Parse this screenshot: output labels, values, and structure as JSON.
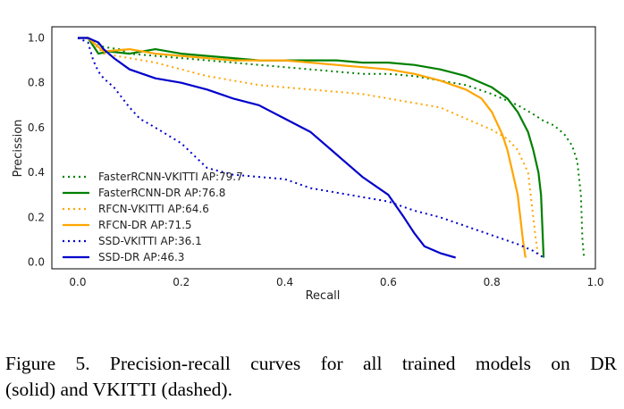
{
  "caption": {
    "line1": "Figure 5. Precision-recall curves for all trained models on DR",
    "line2": "(solid) and VKITTI (dashed)."
  },
  "chart_data": {
    "type": "line",
    "title": "",
    "xlabel": "Recall",
    "ylabel": "Precission",
    "xlim": [
      -0.05,
      1.0
    ],
    "ylim": [
      -0.03,
      1.05
    ],
    "xticks": [
      "0.0",
      "0.2",
      "0.4",
      "0.6",
      "0.8",
      "1.0"
    ],
    "yticks": [
      "0.0",
      "0.2",
      "0.4",
      "0.6",
      "0.8",
      "1.0"
    ],
    "grid": false,
    "legend_position": "lower-left",
    "series": [
      {
        "name": "FasterRCNN-VKITTI AP:79.7",
        "color": "#008000",
        "dash": "dotted",
        "x": [
          0.0,
          0.02,
          0.05,
          0.08,
          0.1,
          0.15,
          0.2,
          0.25,
          0.3,
          0.35,
          0.4,
          0.45,
          0.5,
          0.55,
          0.6,
          0.65,
          0.7,
          0.75,
          0.8,
          0.85,
          0.88,
          0.9,
          0.92,
          0.94,
          0.955,
          0.965,
          0.972,
          0.975,
          0.978
        ],
        "y": [
          1.0,
          1.0,
          0.96,
          0.95,
          0.93,
          0.92,
          0.91,
          0.9,
          0.89,
          0.88,
          0.87,
          0.86,
          0.85,
          0.84,
          0.84,
          0.83,
          0.81,
          0.79,
          0.75,
          0.7,
          0.66,
          0.63,
          0.61,
          0.57,
          0.52,
          0.45,
          0.3,
          0.1,
          0.02
        ]
      },
      {
        "name": "FasterRCNN-DR AP:76.8",
        "color": "#008000",
        "dash": "solid",
        "x": [
          0.0,
          0.02,
          0.04,
          0.06,
          0.1,
          0.15,
          0.2,
          0.25,
          0.3,
          0.35,
          0.4,
          0.45,
          0.5,
          0.55,
          0.6,
          0.65,
          0.7,
          0.75,
          0.8,
          0.83,
          0.85,
          0.87,
          0.88,
          0.89,
          0.895,
          0.9
        ],
        "y": [
          1.0,
          1.0,
          0.93,
          0.94,
          0.93,
          0.95,
          0.93,
          0.92,
          0.91,
          0.9,
          0.9,
          0.9,
          0.9,
          0.89,
          0.89,
          0.88,
          0.86,
          0.83,
          0.78,
          0.73,
          0.67,
          0.58,
          0.5,
          0.4,
          0.3,
          0.02
        ]
      },
      {
        "name": "RFCN-VKITTI AP:64.6",
        "color": "#FFA500",
        "dash": "dotted",
        "x": [
          0.0,
          0.02,
          0.05,
          0.1,
          0.15,
          0.2,
          0.25,
          0.3,
          0.35,
          0.4,
          0.45,
          0.5,
          0.55,
          0.6,
          0.65,
          0.7,
          0.75,
          0.8,
          0.83,
          0.85,
          0.86,
          0.87,
          0.875,
          0.88,
          0.885,
          0.89
        ],
        "y": [
          1.0,
          1.0,
          0.93,
          0.91,
          0.89,
          0.86,
          0.83,
          0.81,
          0.79,
          0.78,
          0.77,
          0.76,
          0.75,
          0.73,
          0.71,
          0.69,
          0.64,
          0.59,
          0.55,
          0.5,
          0.45,
          0.4,
          0.3,
          0.2,
          0.1,
          0.02
        ]
      },
      {
        "name": "RFCN-DR AP:71.5",
        "color": "#FFA500",
        "dash": "solid",
        "x": [
          0.0,
          0.02,
          0.05,
          0.1,
          0.15,
          0.2,
          0.25,
          0.3,
          0.35,
          0.4,
          0.45,
          0.5,
          0.55,
          0.6,
          0.65,
          0.7,
          0.75,
          0.78,
          0.8,
          0.82,
          0.83,
          0.84,
          0.85,
          0.855,
          0.86,
          0.865
        ],
        "y": [
          1.0,
          1.0,
          0.94,
          0.95,
          0.93,
          0.92,
          0.91,
          0.9,
          0.9,
          0.9,
          0.89,
          0.88,
          0.87,
          0.86,
          0.84,
          0.81,
          0.77,
          0.73,
          0.67,
          0.57,
          0.5,
          0.4,
          0.3,
          0.2,
          0.1,
          0.02
        ]
      },
      {
        "name": "SSD-VKITTI AP:36.1",
        "color": "#0000CC",
        "dash": "dotted",
        "x": [
          0.0,
          0.02,
          0.03,
          0.04,
          0.05,
          0.07,
          0.1,
          0.12,
          0.15,
          0.2,
          0.25,
          0.3,
          0.35,
          0.4,
          0.45,
          0.5,
          0.55,
          0.6,
          0.65,
          0.7,
          0.75,
          0.8,
          0.85,
          0.88,
          0.9
        ],
        "y": [
          1.0,
          0.98,
          0.9,
          0.85,
          0.82,
          0.78,
          0.69,
          0.64,
          0.6,
          0.53,
          0.42,
          0.39,
          0.38,
          0.37,
          0.33,
          0.31,
          0.29,
          0.27,
          0.23,
          0.2,
          0.16,
          0.12,
          0.08,
          0.05,
          0.02
        ]
      },
      {
        "name": "SSD-DR AP:46.3",
        "color": "#0000CC",
        "dash": "solid",
        "x": [
          0.0,
          0.02,
          0.04,
          0.05,
          0.07,
          0.1,
          0.15,
          0.2,
          0.25,
          0.3,
          0.35,
          0.4,
          0.45,
          0.5,
          0.55,
          0.6,
          0.63,
          0.65,
          0.67,
          0.7,
          0.73
        ],
        "y": [
          1.0,
          1.0,
          0.98,
          0.95,
          0.91,
          0.86,
          0.82,
          0.8,
          0.77,
          0.73,
          0.7,
          0.64,
          0.58,
          0.48,
          0.38,
          0.3,
          0.2,
          0.13,
          0.07,
          0.04,
          0.02
        ]
      }
    ]
  }
}
